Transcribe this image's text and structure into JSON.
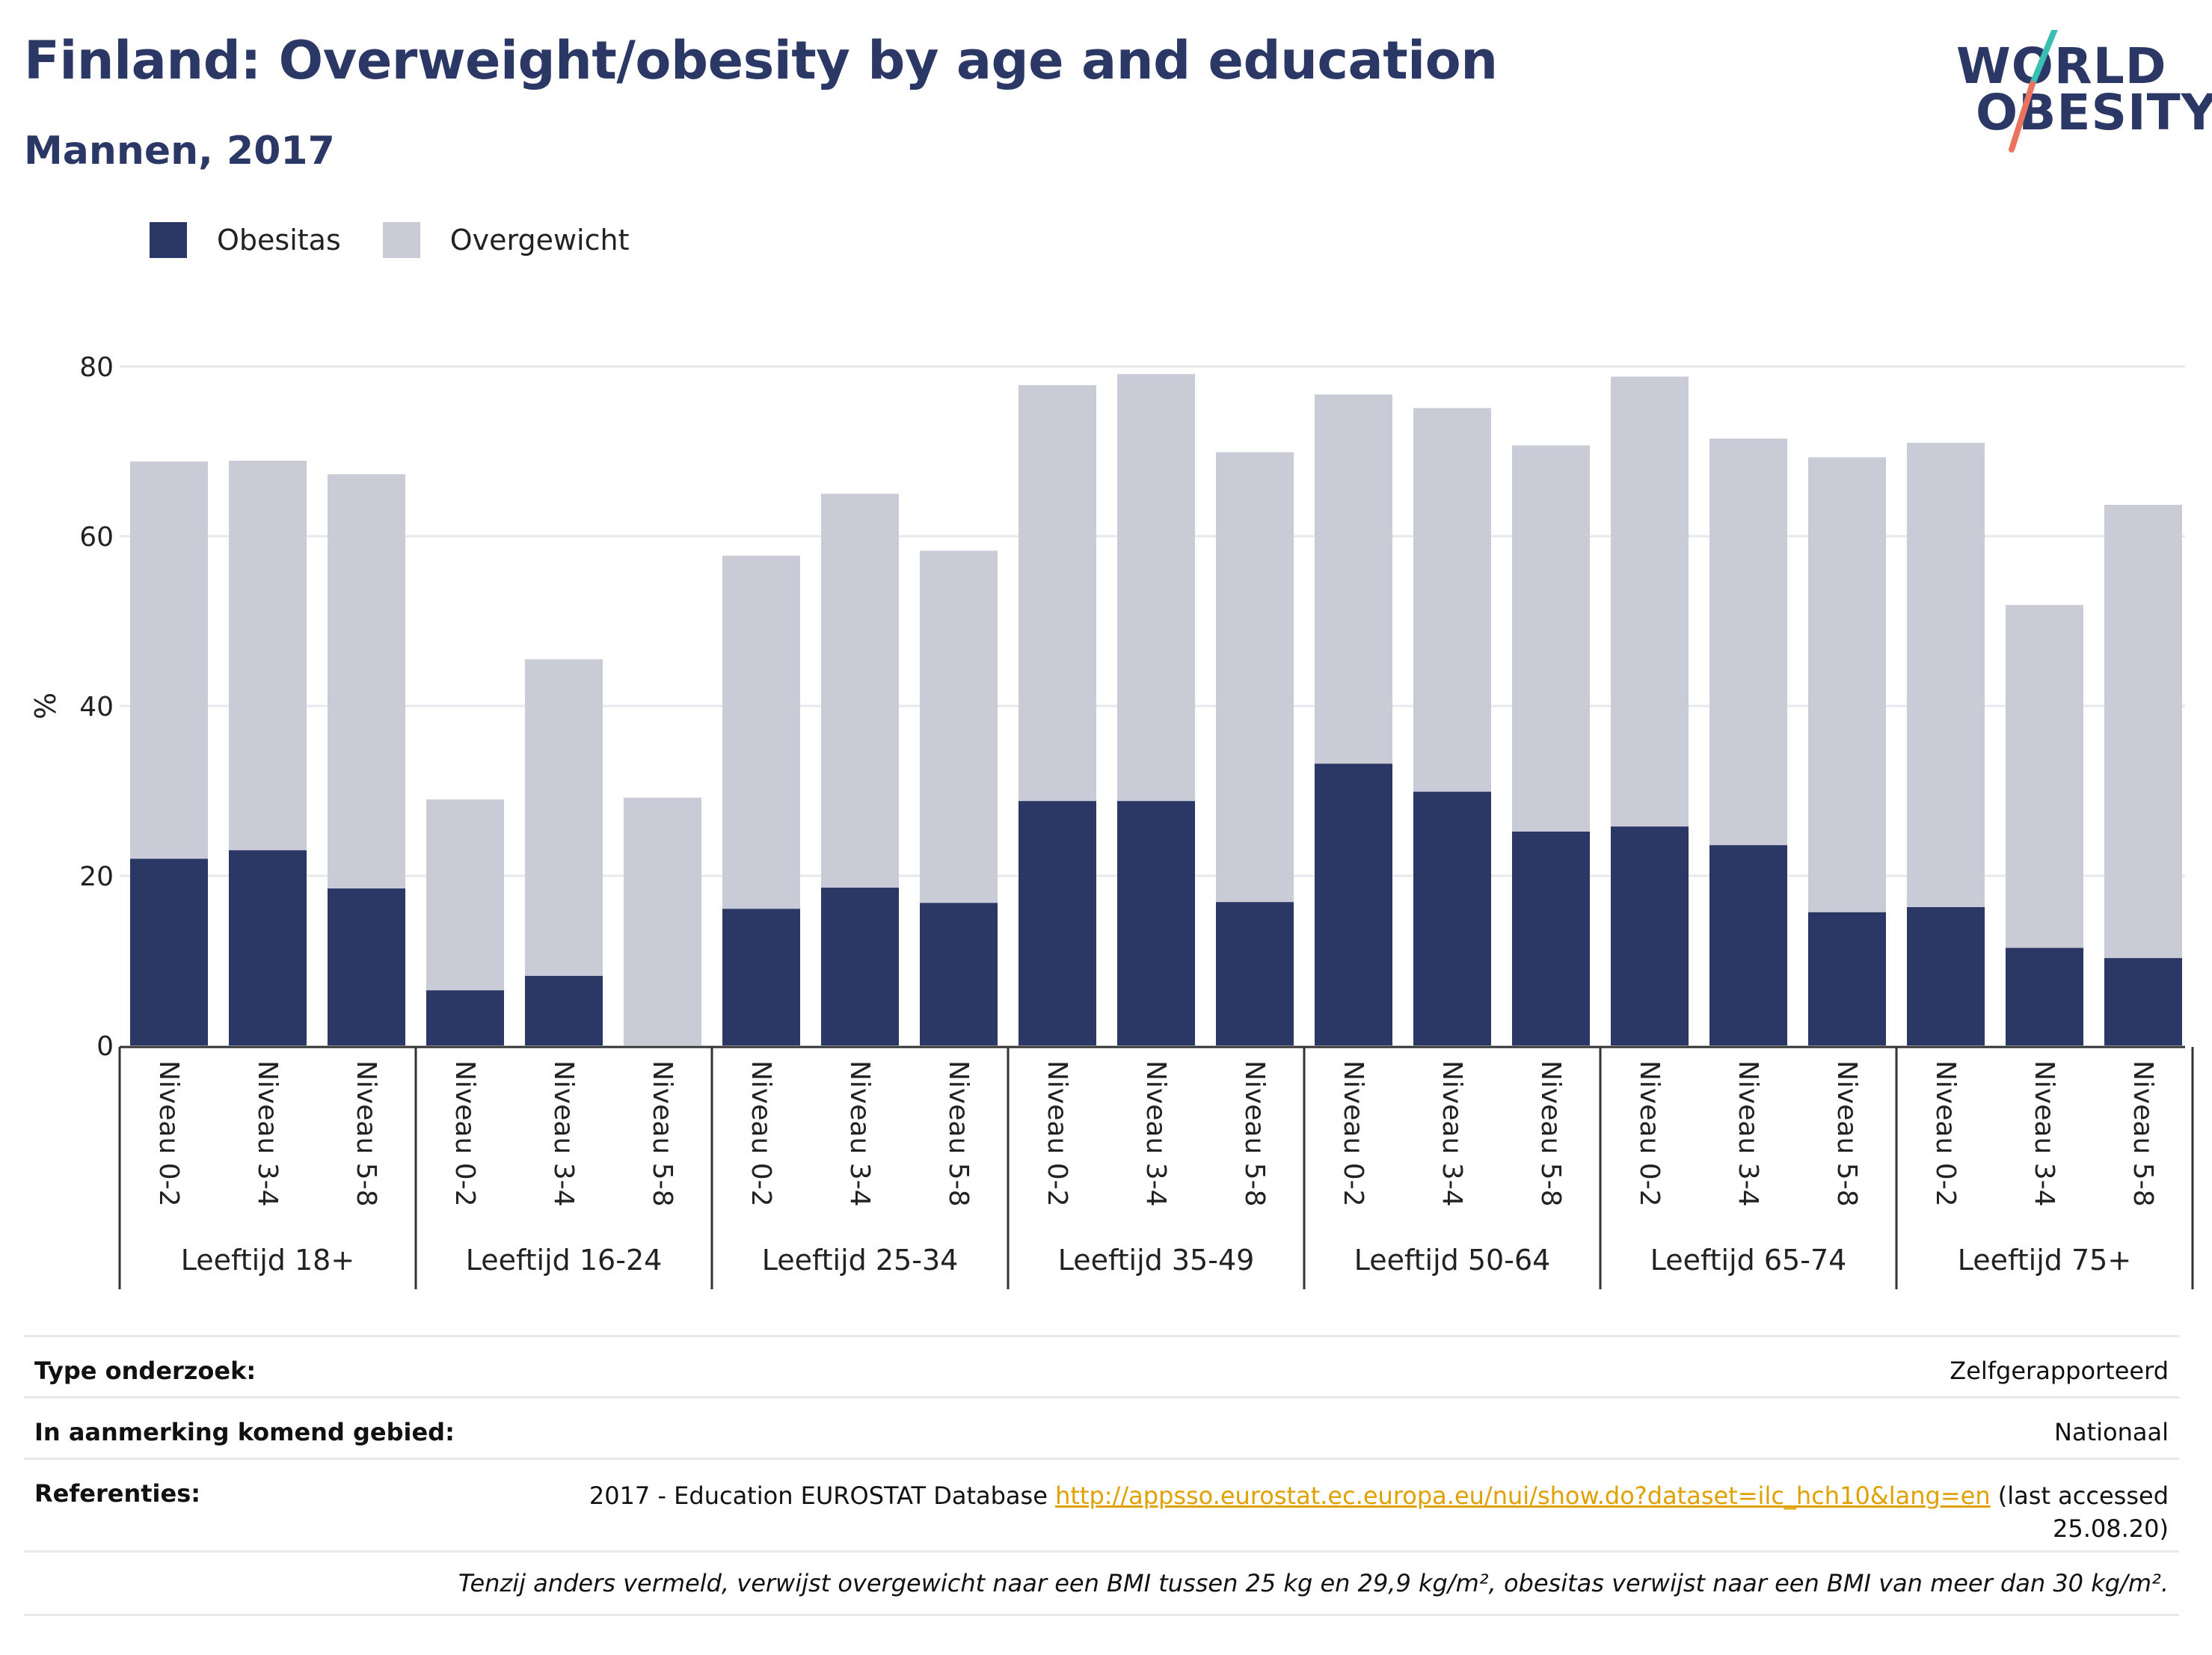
{
  "header": {
    "title": "Finland: Overweight/obesity by age and education",
    "subtitle": "Mannen, 2017"
  },
  "logo": {
    "line1": "WORLD",
    "line2": "OBESITY"
  },
  "legend": {
    "obesity_label": "Obesitas",
    "overweight_label": "Overgewicht"
  },
  "colors": {
    "obesity": "#2b3765",
    "overweight": "#c9cbd7",
    "grid": "#e8e9ee",
    "axis": "#333333",
    "link": "#e0a100"
  },
  "chart_data": {
    "type": "bar",
    "stacked": true,
    "ylabel": "%",
    "ylim": [
      0,
      80
    ],
    "yticks": [
      0,
      20,
      40,
      60,
      80
    ],
    "grid": true,
    "legend_position": "top-left",
    "groups": [
      {
        "label": "Leeftijd 18+",
        "categories": [
          "Niveau 0-2",
          "Niveau 3-4",
          "Niveau 5-8"
        ],
        "obesity": [
          22.0,
          23.0,
          18.5
        ],
        "total": [
          68.8,
          68.9,
          67.3
        ]
      },
      {
        "label": "Leeftijd 16-24",
        "categories": [
          "Niveau 0-2",
          "Niveau 3-4",
          "Niveau 5-8"
        ],
        "obesity": [
          6.5,
          8.2,
          0
        ],
        "total": [
          29.0,
          45.5,
          29.2
        ]
      },
      {
        "label": "Leeftijd 25-34",
        "categories": [
          "Niveau 0-2",
          "Niveau 3-4",
          "Niveau 5-8"
        ],
        "obesity": [
          16.1,
          18.6,
          16.8
        ],
        "total": [
          57.7,
          65.0,
          58.3
        ]
      },
      {
        "label": "Leeftijd 35-49",
        "categories": [
          "Niveau 0-2",
          "Niveau 3-4",
          "Niveau 5-8"
        ],
        "obesity": [
          28.8,
          28.8,
          16.9
        ],
        "total": [
          77.8,
          79.1,
          69.9
        ]
      },
      {
        "label": "Leeftijd 50-64",
        "categories": [
          "Niveau 0-2",
          "Niveau 3-4",
          "Niveau 5-8"
        ],
        "obesity": [
          33.2,
          29.9,
          25.2
        ],
        "total": [
          76.7,
          75.1,
          70.7
        ]
      },
      {
        "label": "Leeftijd 65-74",
        "categories": [
          "Niveau 0-2",
          "Niveau 3-4",
          "Niveau 5-8"
        ],
        "obesity": [
          25.8,
          23.6,
          15.7
        ],
        "total": [
          78.8,
          71.5,
          69.3
        ]
      },
      {
        "label": "Leeftijd 75+",
        "categories": [
          "Niveau 0-2",
          "Niveau 3-4",
          "Niveau 5-8"
        ],
        "obesity": [
          16.3,
          11.5,
          10.3
        ],
        "total": [
          71.0,
          51.9,
          63.7
        ]
      }
    ],
    "series": [
      {
        "name": "Obesitas",
        "key": "obesity"
      },
      {
        "name": "Overgewicht",
        "key": "overweight"
      }
    ]
  },
  "info": {
    "survey_type_label": "Type onderzoek:",
    "survey_type_value": "Zelfgerapporteerd",
    "area_label": "In aanmerking komend gebied:",
    "area_value": "Nationaal",
    "references_label": "Referenties:",
    "references_prefix": "2017 - Education EUROSTAT Database",
    "references_link": "http://appsso.eurostat.ec.europa.eu/nui/show.do?dataset=ilc_hch10&lang=en",
    "references_suffix_1": "(last accessed",
    "references_suffix_2": "25.08.20)",
    "footnote": "Tenzij anders vermeld, verwijst overgewicht naar een BMI tussen 25 kg en 29,9 kg/m², obesitas verwijst naar een BMI van meer dan 30 kg/m²."
  }
}
